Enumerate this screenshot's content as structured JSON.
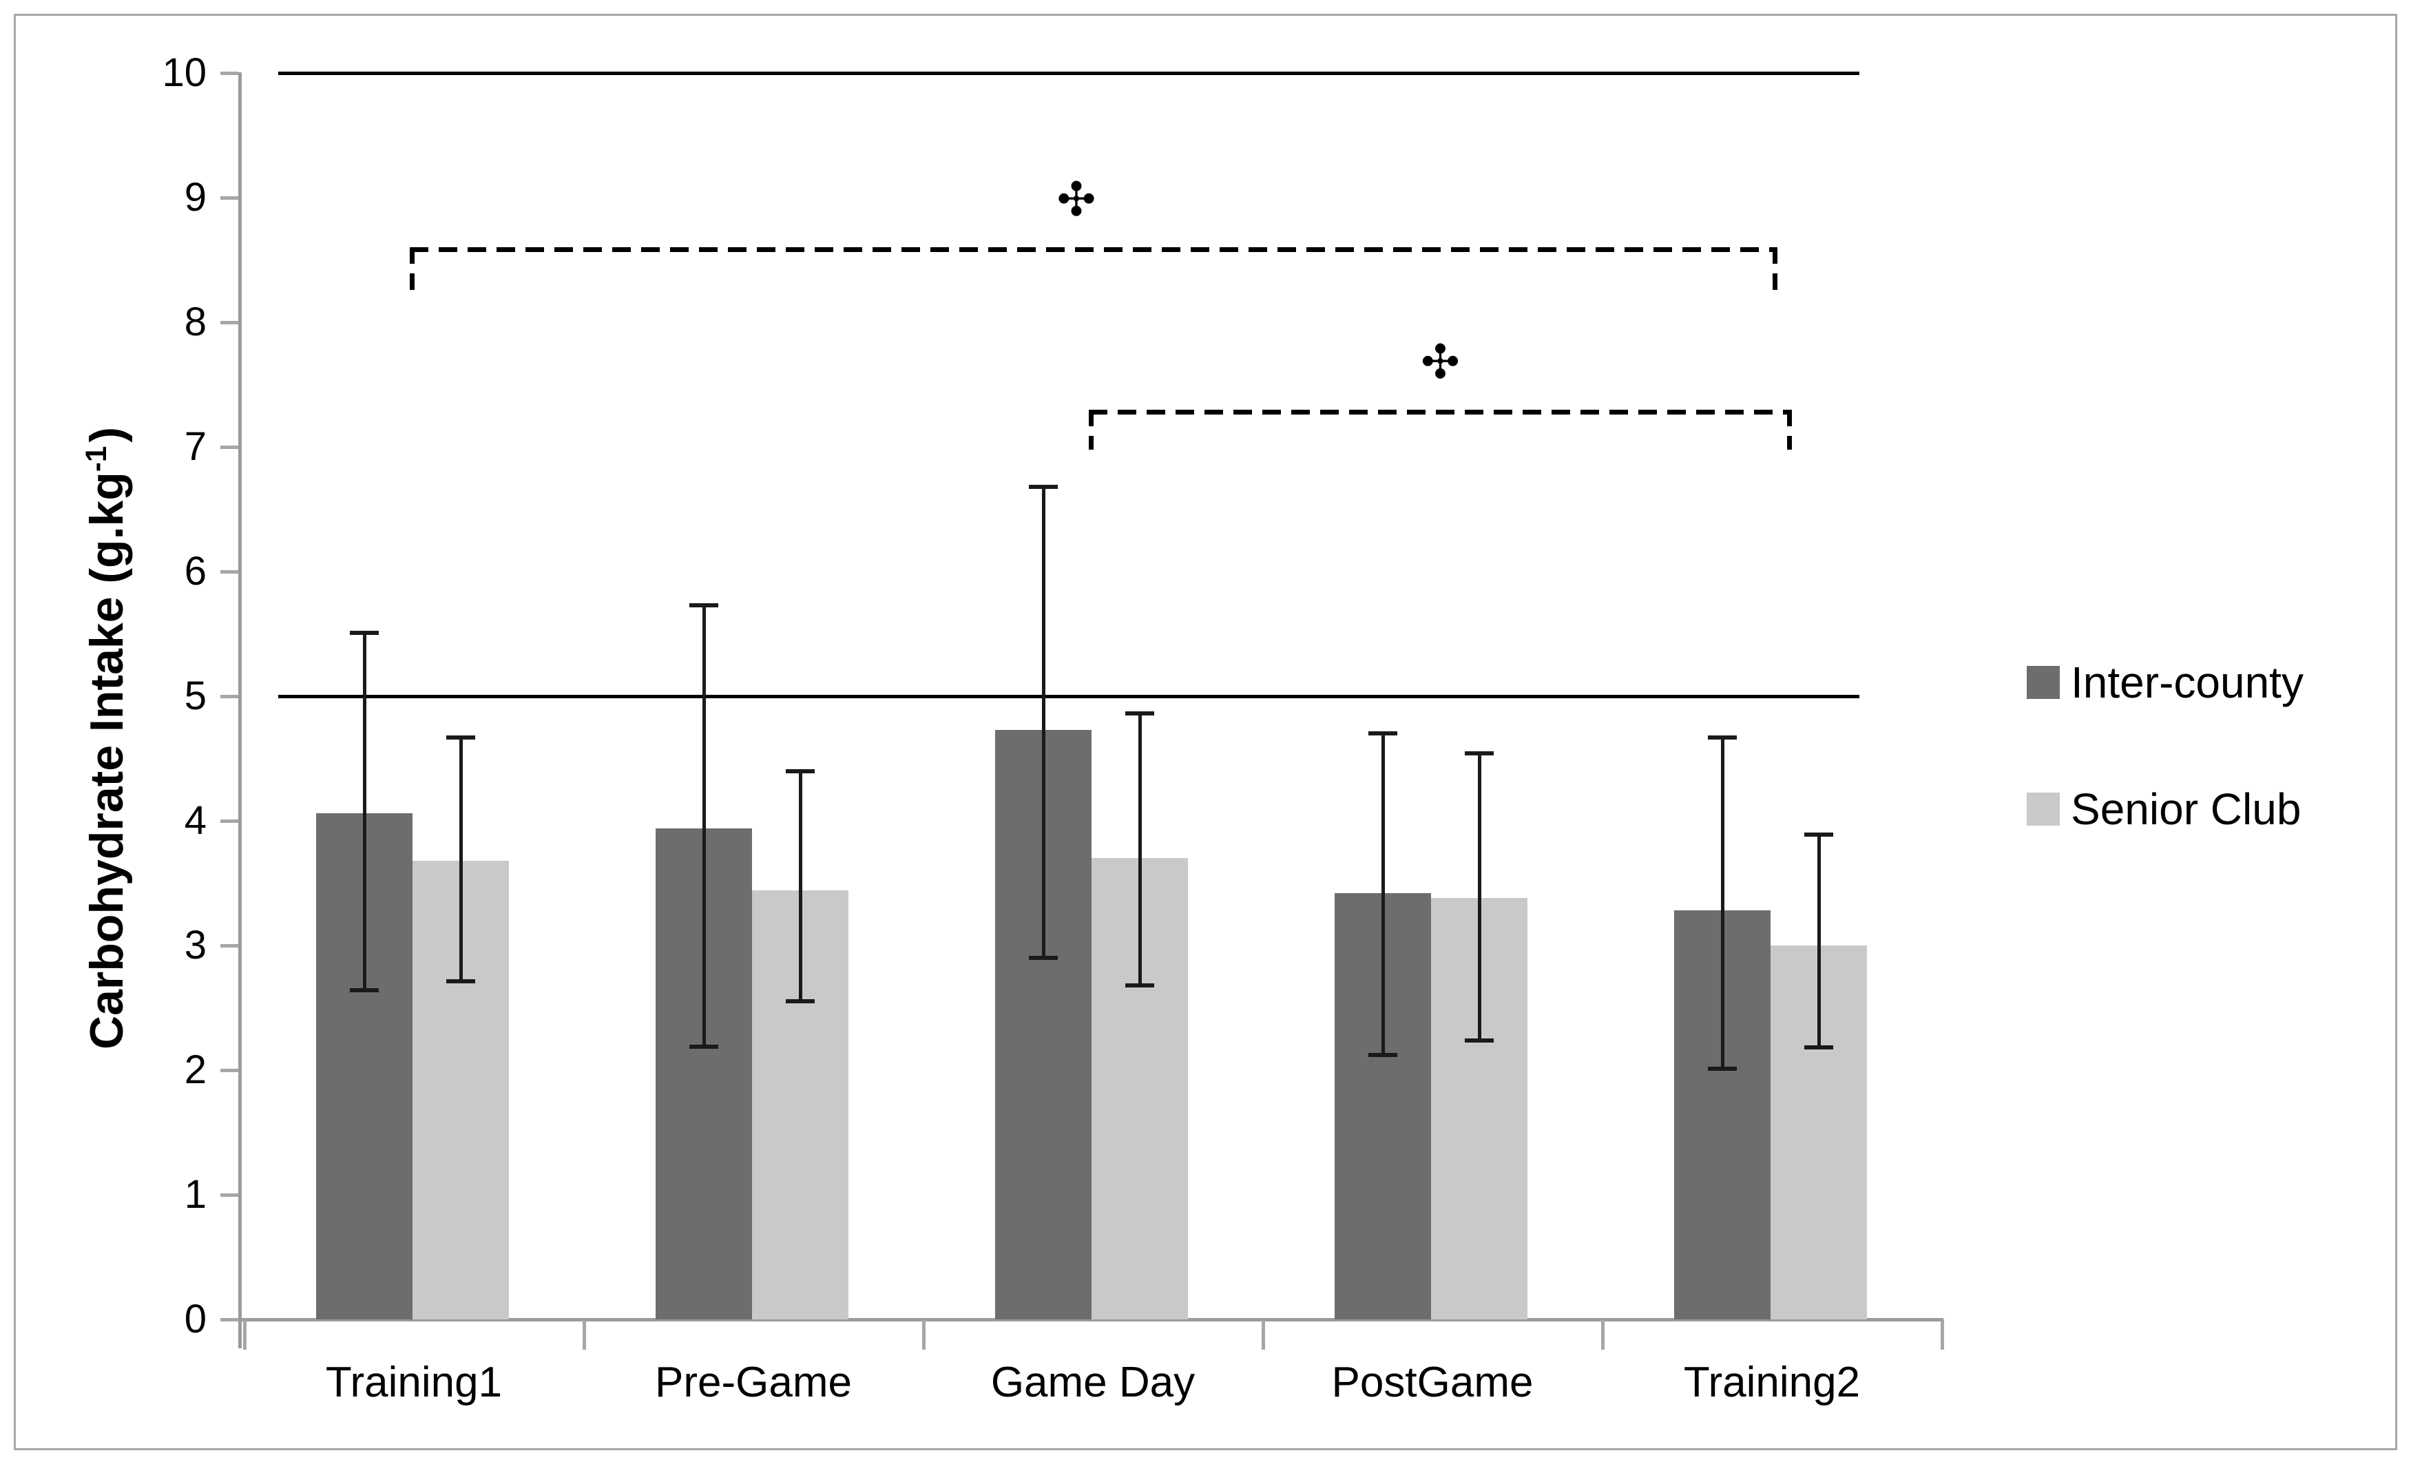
{
  "figure": {
    "background": "#ffffff",
    "border_color": "#a8a8a8",
    "axis_color": "#9b9b9b",
    "tick_color": "#a6a6a6",
    "error_bar_color": "#1a1a1a",
    "reference_line_color": "#000000",
    "text_color": "#000000"
  },
  "chart_data": {
    "type": "bar",
    "title": "",
    "categories": [
      "Training1",
      "Pre-Game",
      "Game Day",
      "PostGame",
      "Training2"
    ],
    "series": [
      {
        "name": "Inter-county",
        "color": "#6d6d6d",
        "values": [
          4.06,
          3.94,
          4.73,
          3.42,
          3.28
        ],
        "error_high": [
          5.51,
          5.73,
          6.68,
          4.7,
          4.67
        ],
        "error_low": [
          2.64,
          2.19,
          2.9,
          2.12,
          2.01
        ]
      },
      {
        "name": "Senior Club",
        "color": "#c9c9c9",
        "values": [
          3.68,
          3.44,
          3.7,
          3.38,
          3.0
        ],
        "error_high": [
          4.67,
          4.4,
          4.86,
          4.54,
          3.89
        ],
        "error_low": [
          2.71,
          2.55,
          2.68,
          2.24,
          2.18
        ]
      }
    ],
    "ylabel": {
      "main": "Carbohydrate Intake (g.kg",
      "sup": "-1",
      "end": ")"
    },
    "xlabel": "",
    "y_ticks": [
      0,
      1,
      2,
      3,
      4,
      5,
      6,
      7,
      8,
      9,
      10
    ],
    "ylim": [
      0,
      10
    ],
    "grid": false,
    "legend_position": "right",
    "reference_lines": [
      {
        "value": 10
      },
      {
        "value": 5
      }
    ],
    "annotations": [
      {
        "symbol": "✣",
        "from": "Training1",
        "to": "Training2",
        "level": 8.6,
        "style": "dashed-bracket"
      },
      {
        "symbol": "✣",
        "from": "Game Day",
        "to": "Training2",
        "level": 7.3,
        "style": "dashed-bracket"
      }
    ]
  }
}
